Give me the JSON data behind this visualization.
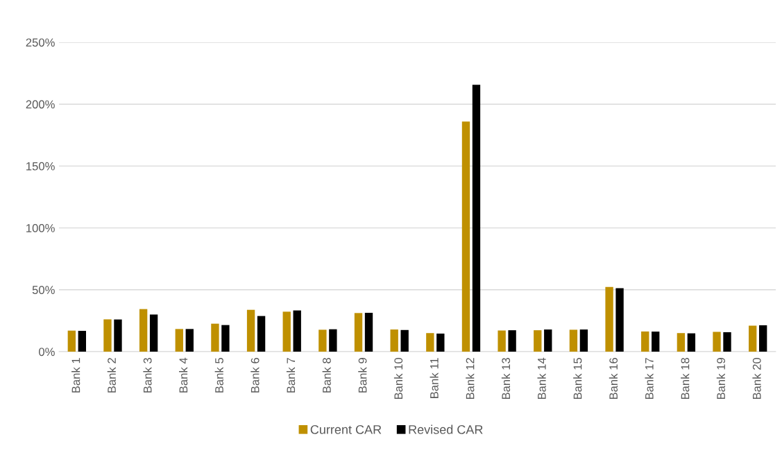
{
  "chart_data": {
    "type": "bar",
    "categories": [
      "Bank 1",
      "Bank 2",
      "Bank 3",
      "Bank 4",
      "Bank 5",
      "Bank 6",
      "Bank 7",
      "Bank 8",
      "Bank 9",
      "Bank 10",
      "Bank 11",
      "Bank 12",
      "Bank 13",
      "Bank 14",
      "Bank 15",
      "Bank 16",
      "Bank 17",
      "Bank 18",
      "Bank 19",
      "Bank 20"
    ],
    "series": [
      {
        "name": "Current CAR",
        "color": "#bf9000",
        "values": [
          17.0,
          26.1,
          34.4,
          18.3,
          22.6,
          33.8,
          32.3,
          17.7,
          31.2,
          17.9,
          15.0,
          186,
          17.1,
          17.3,
          17.7,
          52.3,
          16.3,
          15.0,
          16.0,
          21.0
        ]
      },
      {
        "name": "Revised CAR",
        "color": "#000000",
        "values": [
          16.8,
          26.0,
          30.0,
          18.3,
          21.5,
          28.8,
          33.3,
          18.1,
          31.4,
          17.5,
          14.6,
          215.6,
          17.3,
          17.9,
          17.9,
          51.3,
          16.2,
          14.8,
          15.7,
          21.3
        ]
      }
    ],
    "ylim": [
      0,
      250
    ],
    "yticks": [
      {
        "value": 0,
        "label": "0%"
      },
      {
        "value": 50,
        "label": "50%"
      },
      {
        "value": 100,
        "label": "100%"
      },
      {
        "value": 150,
        "label": "150%"
      },
      {
        "value": 200,
        "label": "200%"
      },
      {
        "value": 250,
        "label": "250%"
      }
    ],
    "grid": "y",
    "legend": "bottom"
  }
}
